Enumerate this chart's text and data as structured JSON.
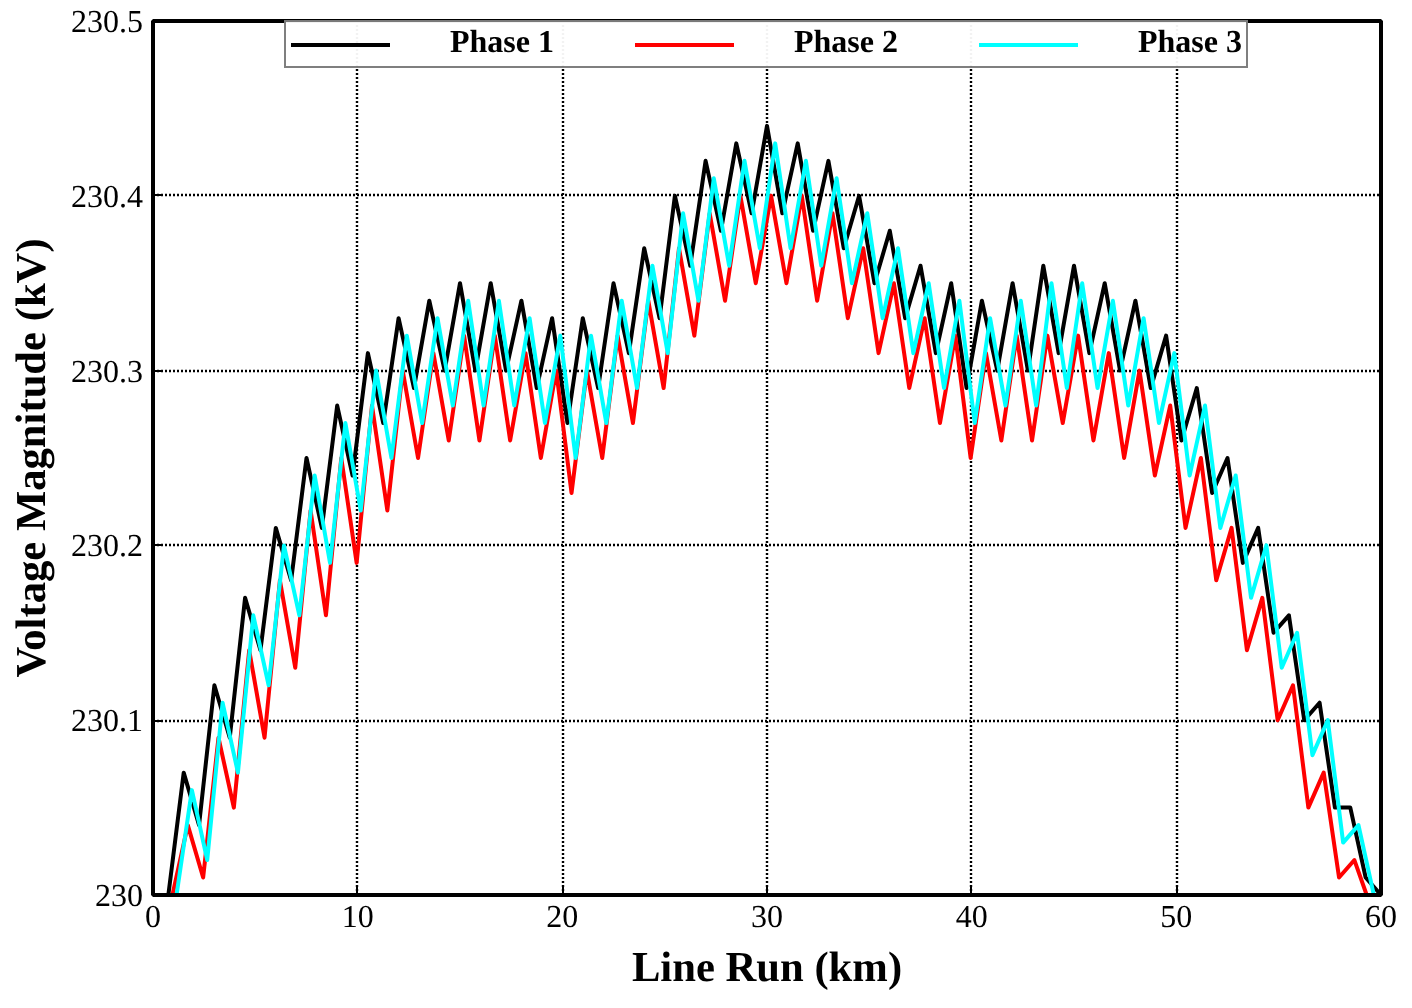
{
  "chart_data": {
    "type": "line",
    "xlabel": "Line Run (km)",
    "ylabel": "Voltage Magnitude (kV)",
    "xlim": [
      0,
      60
    ],
    "ylim": [
      230,
      230.5
    ],
    "xticks": [
      0,
      10,
      20,
      30,
      40,
      50,
      60
    ],
    "yticks": [
      230,
      230.1,
      230.2,
      230.3,
      230.4,
      230.5
    ],
    "grid": true,
    "legend": "top",
    "line_style": "solid",
    "series": [
      {
        "name": "Phase 1",
        "color": "#000000",
        "x": [
          0,
          0.75,
          1.5,
          2.25,
          3,
          3.75,
          4.5,
          5.25,
          6,
          6.75,
          7.5,
          8.25,
          9,
          9.75,
          10.5,
          11.25,
          12,
          12.75,
          13.5,
          14.25,
          15,
          15.75,
          16.5,
          17.25,
          18,
          18.75,
          19.5,
          20.25,
          21,
          21.75,
          22.5,
          23.25,
          24,
          24.75,
          25.5,
          26.25,
          27,
          27.75,
          28.5,
          29.25,
          30,
          30.75,
          31.5,
          32.25,
          33,
          33.75,
          34.5,
          35.25,
          36,
          36.75,
          37.5,
          38.25,
          39,
          39.75,
          40.5,
          41.25,
          42,
          42.75,
          43.5,
          44.25,
          45,
          45.75,
          46.5,
          47.25,
          48,
          48.75,
          49.5,
          50.25,
          51,
          51.75,
          52.5,
          53.25,
          54,
          54.75,
          55.5,
          56.25,
          57,
          57.75,
          58.5,
          59.25,
          60
        ],
        "values": [
          230.0,
          230.0,
          230.07,
          230.04,
          230.12,
          230.09,
          230.17,
          230.14,
          230.21,
          230.18,
          230.25,
          230.21,
          230.28,
          230.24,
          230.31,
          230.27,
          230.33,
          230.29,
          230.34,
          230.3,
          230.35,
          230.3,
          230.35,
          230.3,
          230.34,
          230.29,
          230.33,
          230.27,
          230.33,
          230.29,
          230.35,
          230.31,
          230.37,
          230.33,
          230.4,
          230.36,
          230.42,
          230.38,
          230.43,
          230.39,
          230.44,
          230.39,
          230.43,
          230.38,
          230.42,
          230.37,
          230.4,
          230.35,
          230.38,
          230.33,
          230.36,
          230.31,
          230.35,
          230.29,
          230.34,
          230.3,
          230.35,
          230.3,
          230.36,
          230.31,
          230.36,
          230.31,
          230.35,
          230.3,
          230.34,
          230.29,
          230.32,
          230.26,
          230.29,
          230.23,
          230.25,
          230.19,
          230.21,
          230.15,
          230.16,
          230.1,
          230.11,
          230.05,
          230.05,
          230.01,
          230.0
        ]
      },
      {
        "name": "Phase 2",
        "color": "#ff0000",
        "x": [
          0.3,
          0.95,
          1.7,
          2.45,
          3.2,
          3.95,
          4.7,
          5.45,
          6.2,
          6.95,
          7.7,
          8.45,
          9.2,
          9.95,
          10.7,
          11.45,
          12.2,
          12.95,
          13.7,
          14.45,
          15.2,
          15.95,
          16.7,
          17.45,
          18.2,
          18.95,
          19.7,
          20.45,
          21.2,
          21.95,
          22.7,
          23.45,
          24.2,
          24.95,
          25.7,
          26.45,
          27.2,
          27.95,
          28.7,
          29.45,
          30.2,
          30.95,
          31.7,
          32.45,
          33.2,
          33.95,
          34.7,
          35.45,
          36.2,
          36.95,
          37.7,
          38.45,
          39.2,
          39.95,
          40.7,
          41.45,
          42.2,
          42.95,
          43.7,
          44.45,
          45.2,
          45.95,
          46.7,
          47.45,
          48.2,
          48.95,
          49.7,
          50.45,
          51.2,
          51.95,
          52.7,
          53.45,
          54.2,
          54.95,
          55.7,
          56.45,
          57.2,
          57.95,
          58.7,
          59.3
        ],
        "values": [
          230.0,
          230.0,
          230.04,
          230.01,
          230.09,
          230.05,
          230.14,
          230.09,
          230.18,
          230.13,
          230.22,
          230.16,
          230.25,
          230.19,
          230.28,
          230.22,
          230.3,
          230.25,
          230.31,
          230.26,
          230.32,
          230.26,
          230.32,
          230.26,
          230.31,
          230.25,
          230.3,
          230.23,
          230.3,
          230.25,
          230.32,
          230.27,
          230.34,
          230.29,
          230.37,
          230.32,
          230.39,
          230.34,
          230.4,
          230.35,
          230.4,
          230.35,
          230.4,
          230.34,
          230.39,
          230.33,
          230.37,
          230.31,
          230.35,
          230.29,
          230.33,
          230.27,
          230.32,
          230.25,
          230.31,
          230.26,
          230.32,
          230.26,
          230.32,
          230.27,
          230.32,
          230.26,
          230.31,
          230.25,
          230.3,
          230.24,
          230.28,
          230.21,
          230.25,
          230.18,
          230.21,
          230.14,
          230.17,
          230.1,
          230.12,
          230.05,
          230.07,
          230.01,
          230.02,
          230.0
        ]
      },
      {
        "name": "Phase 3",
        "color": "#00ffff",
        "x": [
          0,
          1.15,
          1.9,
          2.65,
          3.4,
          4.15,
          4.9,
          5.65,
          6.4,
          7.15,
          7.9,
          8.65,
          9.4,
          10.15,
          10.9,
          11.65,
          12.4,
          13.15,
          13.9,
          14.65,
          15.4,
          16.15,
          16.9,
          17.65,
          18.4,
          19.15,
          19.9,
          20.65,
          21.4,
          22.15,
          22.9,
          23.65,
          24.4,
          25.15,
          25.9,
          26.65,
          27.4,
          28.15,
          28.9,
          29.65,
          30.4,
          31.15,
          31.9,
          32.65,
          33.4,
          34.15,
          34.9,
          35.65,
          36.4,
          37.15,
          37.9,
          38.65,
          39.4,
          40.15,
          40.9,
          41.65,
          42.4,
          43.15,
          43.9,
          44.65,
          45.4,
          46.15,
          46.9,
          47.65,
          48.4,
          49.15,
          49.9,
          50.65,
          51.4,
          52.15,
          52.9,
          53.65,
          54.4,
          55.15,
          55.9,
          56.65,
          57.4,
          58.15,
          58.9,
          59.65,
          60
        ],
        "values": [
          230.0,
          230.0,
          230.06,
          230.02,
          230.11,
          230.07,
          230.16,
          230.12,
          230.2,
          230.16,
          230.24,
          230.19,
          230.27,
          230.22,
          230.3,
          230.25,
          230.32,
          230.27,
          230.33,
          230.28,
          230.34,
          230.28,
          230.34,
          230.28,
          230.33,
          230.27,
          230.32,
          230.25,
          230.32,
          230.27,
          230.34,
          230.29,
          230.36,
          230.31,
          230.39,
          230.34,
          230.41,
          230.36,
          230.42,
          230.37,
          230.43,
          230.37,
          230.42,
          230.36,
          230.41,
          230.35,
          230.39,
          230.33,
          230.37,
          230.31,
          230.35,
          230.29,
          230.34,
          230.27,
          230.33,
          230.28,
          230.34,
          230.28,
          230.35,
          230.29,
          230.35,
          230.29,
          230.34,
          230.28,
          230.33,
          230.27,
          230.31,
          230.24,
          230.28,
          230.21,
          230.24,
          230.17,
          230.2,
          230.13,
          230.15,
          230.08,
          230.1,
          230.03,
          230.04,
          230.0,
          230.0
        ]
      }
    ]
  }
}
